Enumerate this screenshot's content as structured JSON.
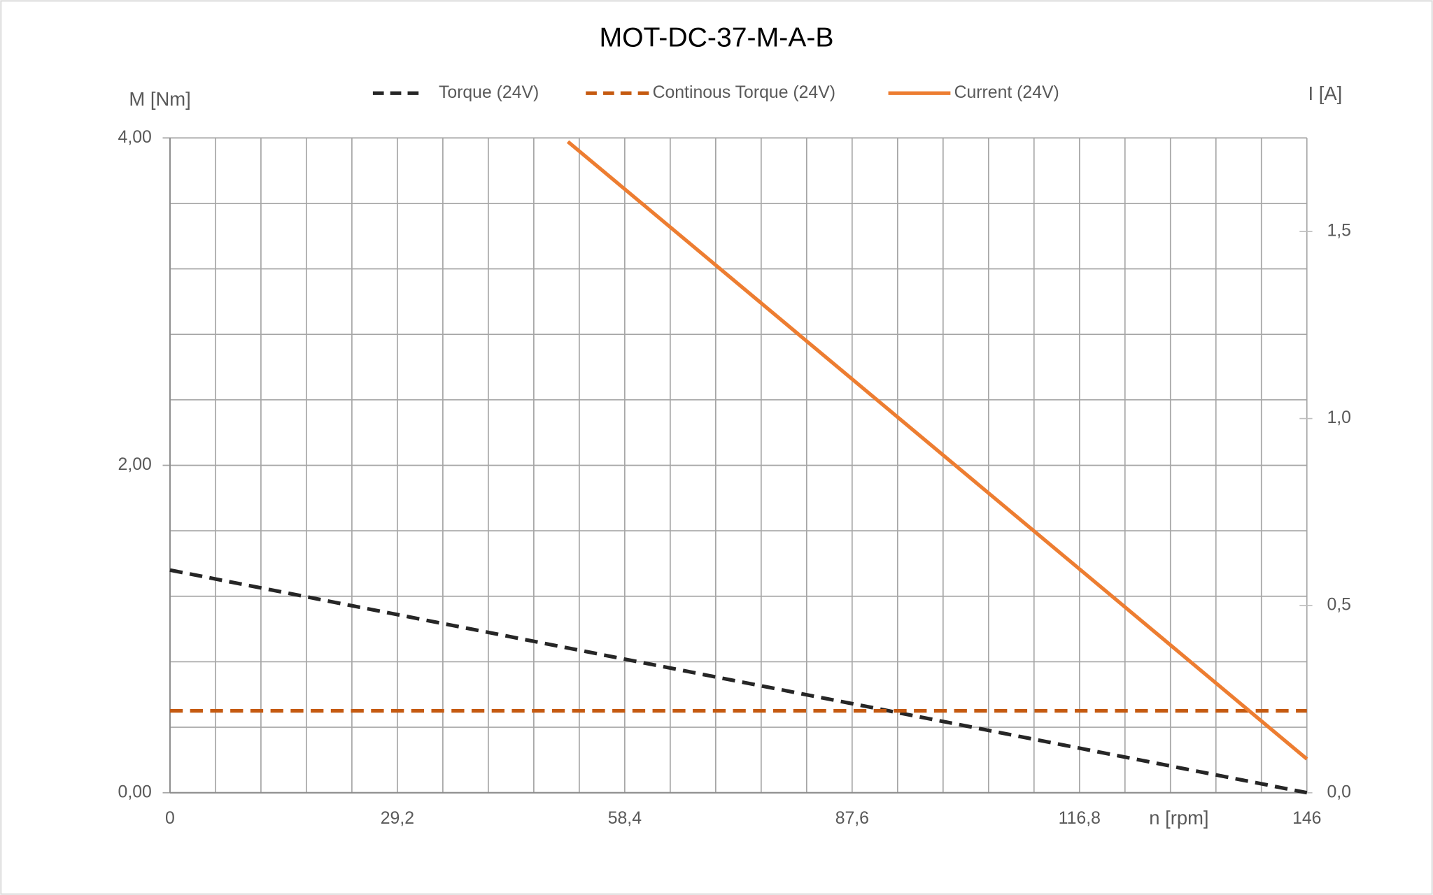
{
  "chart_data": {
    "type": "line",
    "title": "MOT-DC-37-M-A-B",
    "y_label": "M [Nm]",
    "y2_label": "I [A]",
    "x_label": "n [rpm]",
    "xlim": [
      0,
      146
    ],
    "xticks": [
      0,
      {
        "value": 29.2,
        "label": "29,2"
      },
      {
        "value": 58.4,
        "label": "58,4"
      },
      {
        "value": 87.6,
        "label": "87,6"
      },
      {
        "value": 116.8,
        "label": "116,8"
      },
      146
    ],
    "ylim": [
      0,
      4
    ],
    "yticks": [
      {
        "value": 0,
        "label": "0,00"
      },
      {
        "value": 2,
        "label": "2,00"
      },
      {
        "value": 4,
        "label": "4,00"
      }
    ],
    "y2lim": [
      0,
      1.75
    ],
    "y2ticks": [
      {
        "value": 0,
        "label": "0,0"
      },
      {
        "value": 0.5,
        "label": "0,5"
      },
      {
        "value": 1,
        "label": "1,0"
      },
      {
        "value": 1.5,
        "label": "1,5"
      }
    ],
    "grid": true,
    "legend": "top",
    "series": [
      {
        "name": "Torque (24V)",
        "color": "#262626",
        "dash": "dashed",
        "x": [
          0,
          146
        ],
        "values": [
          1.36,
          0
        ]
      },
      {
        "name": "Continous Torque (24V)",
        "color": "#c55a11",
        "dash": "dashed",
        "x": [
          0,
          146
        ],
        "values": [
          0.5,
          0.5
        ]
      },
      {
        "name": "Current (24V)",
        "color": "#ed7d31",
        "dash": "solid",
        "axis": "y2",
        "x": [
          51.1,
          146
        ],
        "values": [
          1.74,
          0.09
        ]
      }
    ]
  }
}
